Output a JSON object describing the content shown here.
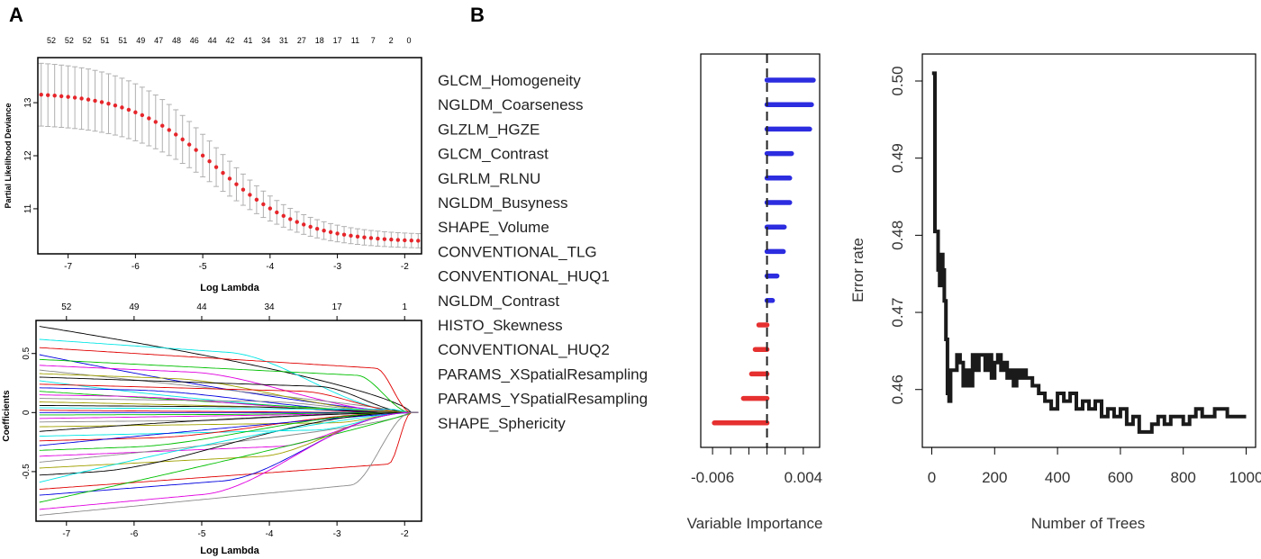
{
  "panels": {
    "a_label": "A",
    "b_label": "B"
  },
  "colors": {
    "dot": "#e6262b",
    "errorbar": "#b0b0b0",
    "pos_bar": "#2c2ce0",
    "neg_bar": "#e63030",
    "line": "#1a1a1a"
  },
  "chart_data": [
    {
      "id": "cv_deviance",
      "type": "scatter",
      "xlabel": "Log Lambda",
      "ylabel": "Partial Likelihood Deviance",
      "xlim": [
        -7.45,
        -1.75
      ],
      "ylim": [
        10.15,
        13.85
      ],
      "x_ticks": [
        -7,
        -6,
        -5,
        -4,
        -3,
        -2
      ],
      "y_ticks": [
        11,
        12,
        13
      ],
      "top_labels": [
        "52",
        "52",
        "52",
        "51",
        "51",
        "49",
        "47",
        "48",
        "46",
        "44",
        "42",
        "41",
        "34",
        "31",
        "27",
        "18",
        "17",
        "11",
        "7",
        "2",
        "0"
      ],
      "x_start": -7.4,
      "x_step": 0.1,
      "y_start": 13.2,
      "y_end": 10.37,
      "y_mid": -4.8,
      "y_slope": 1.55,
      "se_start": 0.6,
      "se_end": 0.13
    },
    {
      "id": "coef_path",
      "type": "line",
      "xlabel": "Log Lambda",
      "ylabel": "Coefficients",
      "xlim": [
        -7.45,
        -1.75
      ],
      "ylim": [
        -0.92,
        0.78
      ],
      "x_ticks": [
        -7,
        -6,
        -5,
        -4,
        -3,
        -2
      ],
      "y_ticks": [
        -0.5,
        0.0,
        0.5
      ],
      "top_tick_values": [
        -7,
        -6,
        -5,
        -4,
        -3,
        -2
      ],
      "top_labels": [
        "52",
        "49",
        "44",
        "34",
        "17",
        "1"
      ],
      "zero_at": -1.9,
      "start_values": [
        0.73,
        0.62,
        0.55,
        0.49,
        0.45,
        0.4,
        0.36,
        0.33,
        0.3,
        0.27,
        0.24,
        0.21,
        0.18,
        0.15,
        0.12,
        0.09,
        0.06,
        0.04,
        0.02,
        0.0,
        -0.02,
        -0.05,
        -0.08,
        -0.12,
        -0.16,
        -0.2,
        -0.24,
        -0.28,
        -0.32,
        -0.37,
        -0.42,
        -0.47,
        -0.53,
        -0.59,
        -0.65,
        -0.7,
        -0.76,
        -0.82,
        -0.87
      ],
      "line_colors": [
        "#000000",
        "#00e5e5",
        "#e00000",
        "#0000e0",
        "#00c000",
        "#e000e0",
        "#8a8a8a",
        "#a0a000"
      ]
    },
    {
      "id": "variable_importance",
      "type": "bar",
      "xlabel": "Variable Importance",
      "xlim": [
        -0.0073,
        0.0058
      ],
      "x_ticks": [
        -0.006,
        0.004
      ],
      "x_tick_labels": [
        "-0.006",
        "0.004"
      ],
      "categories": [
        "GLCM_Homogeneity",
        "NGLDM_Coarseness",
        "GLZLM_HGZE",
        "GLCM_Contrast",
        "GLRLM_RLNU",
        "NGLDM_Busyness",
        "SHAPE_Volume",
        "CONVENTIONAL_TLG",
        "CONVENTIONAL_HUQ1",
        "NGLDM_Contrast",
        "HISTO_Skewness",
        "CONVENTIONAL_HUQ2",
        "PARAMS_XSpatialResampling",
        "PARAMS_YSpatialResampling",
        "SHAPE_Sphericity"
      ],
      "values": [
        0.0051,
        0.0049,
        0.0047,
        0.0027,
        0.0025,
        0.0025,
        0.0019,
        0.0018,
        0.0011,
        0.0006,
        -0.0009,
        -0.0013,
        -0.0017,
        -0.0026,
        -0.0058
      ]
    },
    {
      "id": "error_rate",
      "type": "line",
      "xlabel": "Number of Trees",
      "ylabel": "Error rate",
      "xlim": [
        -30,
        1030
      ],
      "ylim": [
        0.4525,
        0.5035
      ],
      "x_ticks": [
        0,
        200,
        400,
        600,
        800,
        1000
      ],
      "y_ticks": [
        0.46,
        0.47,
        0.48,
        0.49,
        0.5
      ],
      "y_tick_labels": [
        "0.46",
        "0.47",
        "0.48",
        "0.49",
        "0.50"
      ],
      "x": [
        1,
        5,
        10,
        12,
        20,
        25,
        30,
        35,
        40,
        45,
        50,
        55,
        60,
        70,
        80,
        90,
        100,
        110,
        120,
        130,
        140,
        150,
        160,
        170,
        180,
        190,
        200,
        210,
        220,
        230,
        240,
        250,
        260,
        270,
        280,
        290,
        300,
        320,
        340,
        360,
        380,
        400,
        420,
        440,
        460,
        480,
        500,
        520,
        540,
        560,
        580,
        600,
        620,
        640,
        660,
        680,
        700,
        720,
        740,
        760,
        780,
        800,
        820,
        840,
        860,
        880,
        900,
        920,
        940,
        960,
        980,
        1000
      ],
      "values": [
        0.501,
        0.501,
        0.4805,
        0.4805,
        0.4755,
        0.4735,
        0.4775,
        0.4755,
        0.4715,
        0.4665,
        0.4595,
        0.4585,
        0.4625,
        0.4625,
        0.4645,
        0.4635,
        0.4605,
        0.4625,
        0.4605,
        0.4645,
        0.4625,
        0.4645,
        0.4645,
        0.4625,
        0.4645,
        0.4615,
        0.4635,
        0.4645,
        0.4625,
        0.4635,
        0.4615,
        0.4625,
        0.4605,
        0.4625,
        0.4615,
        0.4625,
        0.4615,
        0.4605,
        0.4595,
        0.4585,
        0.4575,
        0.4595,
        0.4585,
        0.4595,
        0.4575,
        0.4585,
        0.4575,
        0.4585,
        0.4565,
        0.4575,
        0.4565,
        0.4575,
        0.4555,
        0.4565,
        0.4545,
        0.4545,
        0.4555,
        0.4565,
        0.4555,
        0.4565,
        0.4565,
        0.4555,
        0.4565,
        0.4575,
        0.4565,
        0.4565,
        0.4575,
        0.4575,
        0.4565,
        0.4565,
        0.4565,
        0.4565
      ]
    }
  ]
}
